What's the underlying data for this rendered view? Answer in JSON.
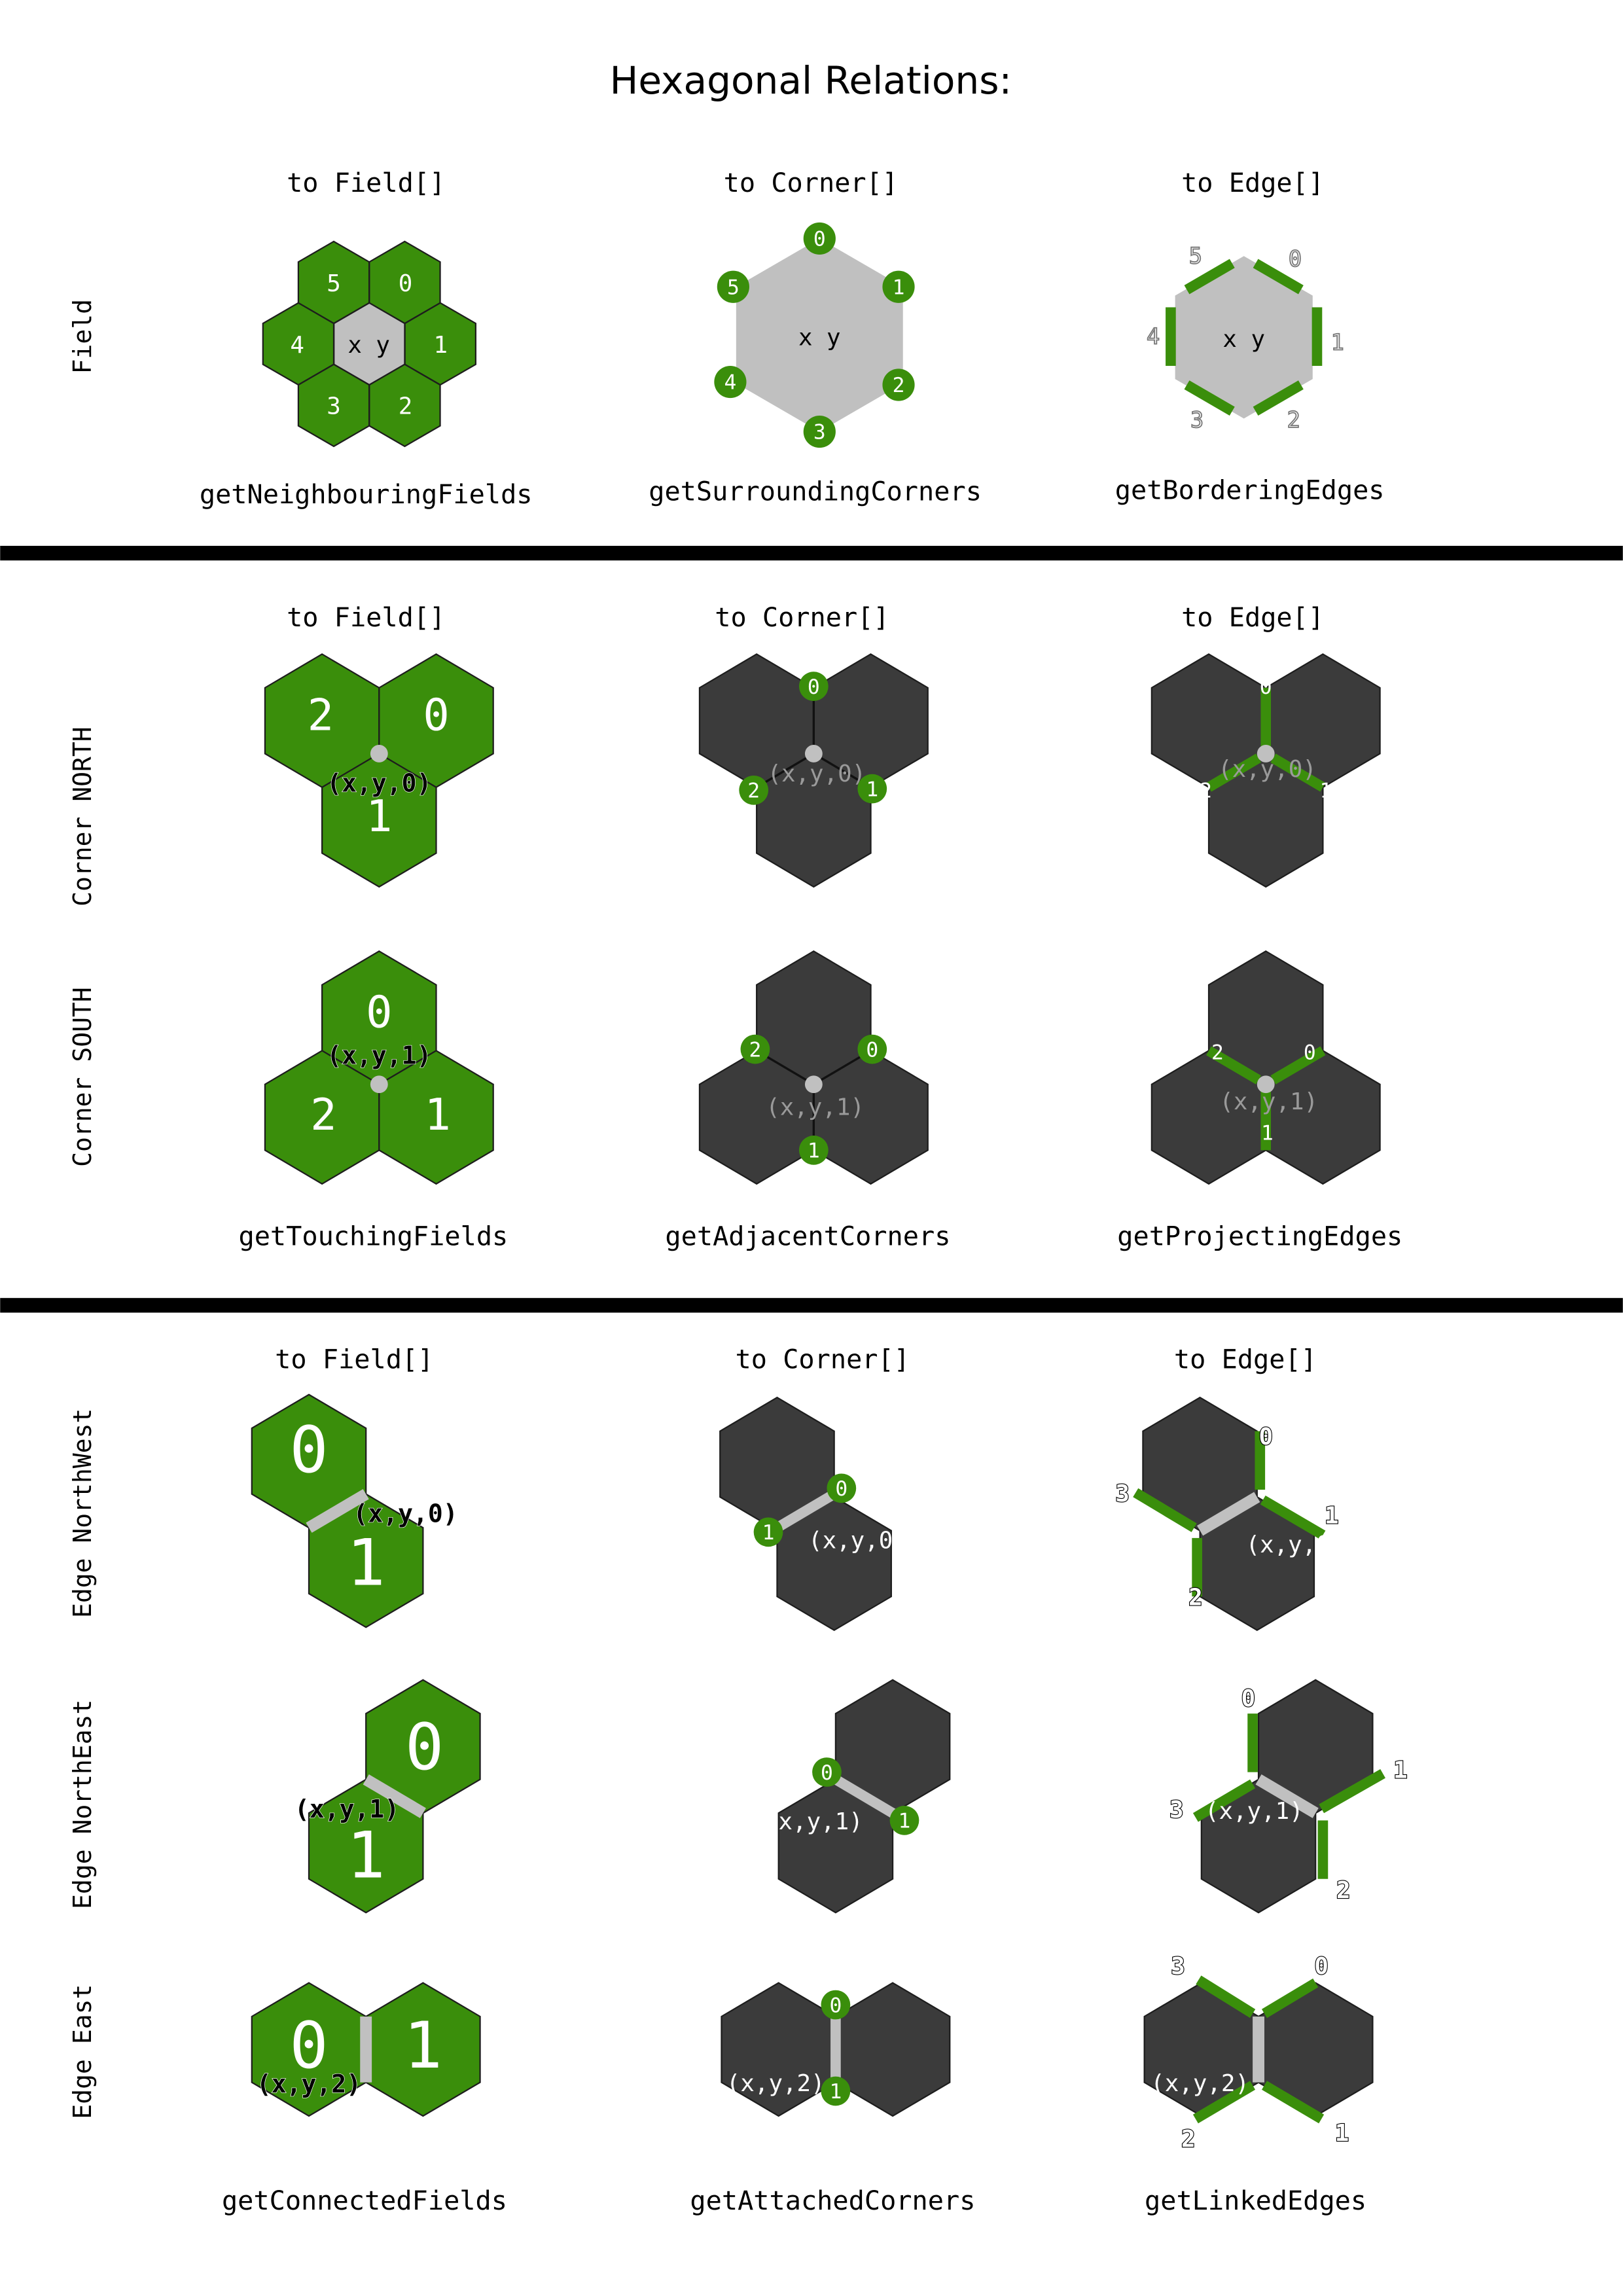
{
  "title": "Hexagonal Relations:",
  "colors": {
    "green": "#3a8e0b",
    "gray": "#c0c0c0",
    "dark": "#3b3b3b",
    "black": "#000000"
  },
  "col_headers": {
    "field": "to Field[]",
    "corner": "to Corner[]",
    "edge": "to Edge[]"
  },
  "row_labels": {
    "field": "Field",
    "corner_north": "Corner NORTH",
    "corner_south": "Corner SOUTH",
    "edge_nw": "Edge NorthWest",
    "edge_ne": "Edge NorthEast",
    "edge_e": "Edge East"
  },
  "functions": {
    "field_field": "getNeighbouringFields",
    "field_corner": "getSurroundingCorners",
    "field_edge": "getBorderingEdges",
    "corner_field": "getTouchingFields",
    "corner_corner": "getAdjacentCorners",
    "corner_edge": "getProjectingEdges",
    "edge_field": "getConnectedFields",
    "edge_corner": "getAttachedCorners",
    "edge_edge": "getLinkedEdges"
  },
  "center_labels": {
    "field": "x y",
    "corner_north": "(x,y,0)",
    "corner_south": "(x,y,1)",
    "edge_nw": "(x,y,0)",
    "edge_ne": "(x,y,1)",
    "edge_e": "(x,y,2)"
  },
  "indices": [
    "0",
    "1",
    "2",
    "3",
    "4",
    "5"
  ]
}
